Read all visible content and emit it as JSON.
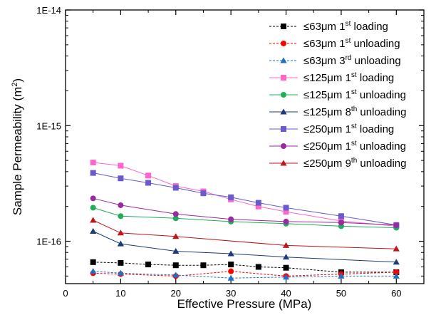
{
  "chart_data": {
    "type": "line",
    "xlabel": "Effective Pressure (MPa)",
    "ylabel": "Sample Permeability (m²)",
    "ylabel_main": "Sample Permeability (m",
    "ylabel_sup": "2",
    "ylabel_close": ")",
    "xlim": [
      0,
      65
    ],
    "ylim": [
      4.3e-17,
      1e-14
    ],
    "yscale": "log",
    "xticks": [
      0,
      10,
      20,
      30,
      40,
      50,
      60
    ],
    "xtick_labels": [
      "0",
      "10",
      "20",
      "30",
      "40",
      "50",
      "60"
    ],
    "yticks": [
      1e-16,
      1e-15,
      1e-14
    ],
    "ytick_labels": [
      "1E-16",
      "1E-15",
      "1E-14"
    ],
    "grid": false,
    "legend_position": "top-right",
    "series": [
      {
        "name": "≤63μm 1st loading",
        "prefix": "≤63μm 1",
        "sup": "st",
        "suffix": " loading",
        "color": "#000000",
        "marker": "square",
        "dash": "3,2",
        "x": [
          5,
          10,
          15,
          20,
          25,
          30,
          35,
          40,
          50,
          60
        ],
        "y": [
          6.6e-17,
          6.5e-17,
          6.3e-17,
          6.2e-17,
          6.2e-17,
          6.3e-17,
          6e-17,
          5.9e-17,
          5.4e-17,
          5.4e-17
        ]
      },
      {
        "name": "≤63μm 1st unloading",
        "prefix": "≤63μm 1",
        "sup": "st",
        "suffix": " unloading",
        "color": "#ff0000",
        "marker": "circle",
        "dash": "3,2",
        "x": [
          5,
          10,
          20,
          30,
          40,
          50,
          60
        ],
        "y": [
          5.3e-17,
          5.2e-17,
          5e-17,
          5.5e-17,
          5e-17,
          5.2e-17,
          5.4e-17
        ]
      },
      {
        "name": "≤63μm 3rd unloading",
        "prefix": "≤63μm 3",
        "sup": "rd",
        "suffix": " unloading",
        "color": "#1f6fc5",
        "marker": "triangle",
        "dash": "3,2",
        "x": [
          5,
          10,
          20,
          30,
          40,
          50,
          60
        ],
        "y": [
          5.5e-17,
          5.3e-17,
          5.1e-17,
          4.8e-17,
          4.9e-17,
          5e-17,
          5e-17
        ]
      },
      {
        "name": "≤125μm 1st loading",
        "prefix": "≤125μm 1",
        "sup": "st",
        "suffix": " loading",
        "color": "#ff66cc",
        "marker": "square",
        "dash": "",
        "x": [
          5,
          10,
          15,
          20,
          25,
          30,
          35,
          40,
          50,
          60
        ],
        "y": [
          4.8e-16,
          4.5e-16,
          3.7e-16,
          3e-16,
          2.7e-16,
          2.3e-16,
          2e-16,
          1.8e-16,
          1.5e-16,
          1.35e-16
        ]
      },
      {
        "name": "≤125μm 1st unloading",
        "prefix": "≤125μm 1",
        "sup": "st",
        "suffix": " unloading",
        "color": "#1fae5a",
        "marker": "circle",
        "dash": "",
        "x": [
          5,
          10,
          20,
          30,
          40,
          50,
          60
        ],
        "y": [
          1.95e-16,
          1.65e-16,
          1.58e-16,
          1.48e-16,
          1.42e-16,
          1.35e-16,
          1.31e-16
        ]
      },
      {
        "name": "≤125μm 8th unloading",
        "prefix": "≤125μm 8",
        "sup": "th",
        "suffix": " unloading",
        "color": "#1e3a78",
        "marker": "triangle",
        "dash": "",
        "x": [
          5,
          10,
          20,
          30,
          40,
          60
        ],
        "y": [
          1.22e-16,
          9.5e-17,
          8.2e-17,
          7.8e-17,
          7.3e-17,
          6.6e-17
        ]
      },
      {
        "name": "≤250μm 1st loading",
        "prefix": "≤250μm 1",
        "sup": "st",
        "suffix": " loading",
        "color": "#6a5acd",
        "marker": "square",
        "dash": "",
        "x": [
          5,
          10,
          15,
          20,
          25,
          30,
          35,
          40,
          50,
          60
        ],
        "y": [
          3.9e-16,
          3.5e-16,
          3.2e-16,
          2.9e-16,
          2.6e-16,
          2.4e-16,
          2.15e-16,
          1.95e-16,
          1.65e-16,
          1.38e-16
        ]
      },
      {
        "name": "≤250μm 1st unloading",
        "prefix": "≤250μm 1",
        "sup": "st",
        "suffix": " unloading",
        "color": "#9a2aa0",
        "marker": "circle",
        "dash": "",
        "x": [
          5,
          10,
          20,
          30,
          40,
          50,
          60
        ],
        "y": [
          2.35e-16,
          2.05e-16,
          1.72e-16,
          1.55e-16,
          1.48e-16,
          1.45e-16,
          1.38e-16
        ]
      },
      {
        "name": "≤250μm 9th unloading",
        "prefix": "≤250μm 9",
        "sup": "th",
        "suffix": " unloading",
        "color": "#c0151b",
        "marker": "triangle",
        "dash": "",
        "x": [
          5,
          10,
          20,
          40,
          60
        ],
        "y": [
          1.52e-16,
          1.18e-16,
          1.1e-16,
          9.2e-17,
          8.6e-17
        ]
      }
    ]
  }
}
